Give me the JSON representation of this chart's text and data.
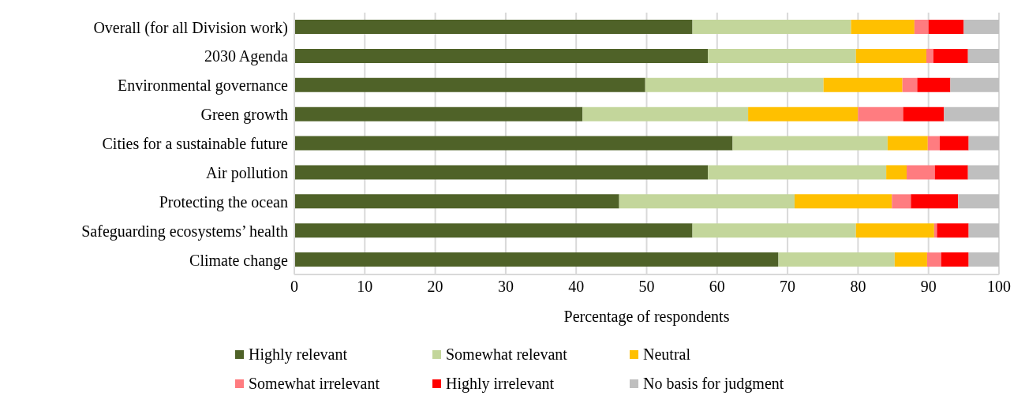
{
  "chart_data": {
    "type": "bar",
    "orientation": "horizontal",
    "stacked": true,
    "categories": [
      "Overall (for all Division work)",
      "2030 Agenda",
      "Environmental governance",
      "Green growth",
      "Cities for a sustainable future",
      "Air pollution",
      "Protecting the ocean",
      "Safeguarding ecosystems’ health",
      "Climate change"
    ],
    "series": [
      {
        "name": "Highly relevant",
        "color": "#4f6228",
        "values": [
          56.5,
          58.7,
          49.8,
          40.9,
          62.2,
          58.7,
          46.1,
          56.5,
          68.7
        ]
      },
      {
        "name": "Somewhat relevant",
        "color": "#c3d69b",
        "values": [
          22.5,
          21,
          25.3,
          23.5,
          22,
          25.3,
          24.9,
          23.2,
          16.5
        ]
      },
      {
        "name": "Neutral",
        "color": "#ffc000",
        "values": [
          9,
          10,
          11.2,
          15.6,
          5.7,
          2.9,
          13.8,
          11.1,
          4.6
        ]
      },
      {
        "name": "Somewhat irrelevant",
        "color": "#ff7c80",
        "values": [
          2,
          1,
          2.1,
          6.4,
          1.7,
          4,
          2.7,
          0.4,
          2
        ]
      },
      {
        "name": "Highly irrelevant",
        "color": "#ff0000",
        "values": [
          5,
          4.9,
          4.7,
          5.8,
          4.1,
          4.7,
          6.7,
          4.5,
          3.9
        ]
      },
      {
        "name": "No basis for judgment",
        "color": "#bfbfbf",
        "values": [
          5,
          4.4,
          6.9,
          7.8,
          4.3,
          4.4,
          5.8,
          4.3,
          4.3
        ]
      }
    ],
    "xlabel": "Percentage of respondents",
    "xlim": [
      0,
      100
    ],
    "xticks": [
      0,
      10,
      20,
      30,
      40,
      50,
      60,
      70,
      80,
      90,
      100
    ],
    "grid": "x",
    "legend": "bottom"
  }
}
